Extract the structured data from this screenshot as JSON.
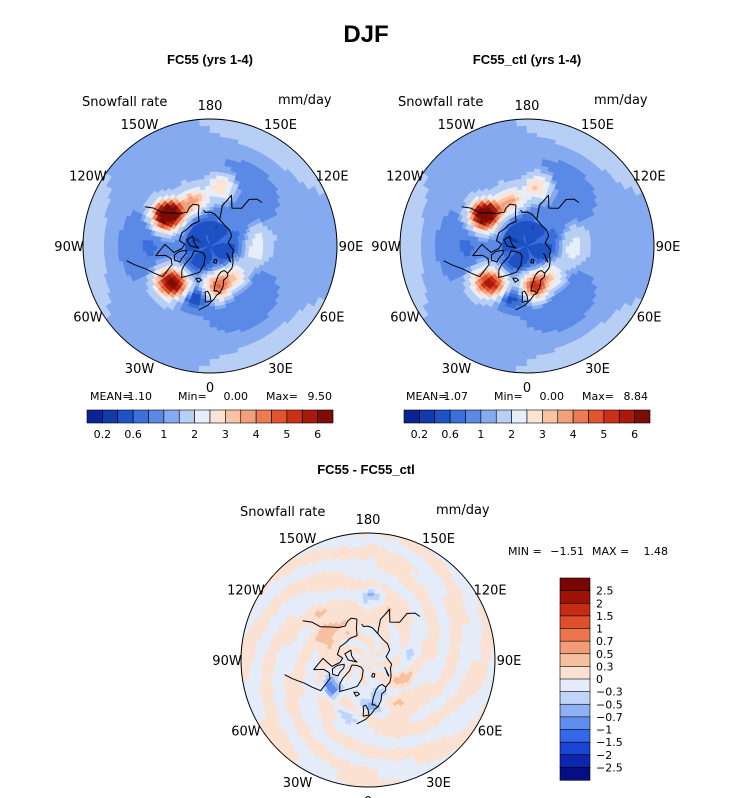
{
  "page_title": "DJF",
  "units": "mm/day",
  "variable": "Snowfall rate",
  "lon_labels": [
    "180",
    "150E",
    "120E",
    "90E",
    "60E",
    "30E",
    "0",
    "30W",
    "60W",
    "90W",
    "120W",
    "150W"
  ],
  "stat_labels": {
    "mean": "MEAN=",
    "min": "Min=",
    "max": "Max=",
    "min_uc": "MIN =",
    "max_uc": "MAX ="
  },
  "colors": {
    "seq": [
      "#0a2494",
      "#133aa8",
      "#1f52c4",
      "#3b6fdb",
      "#5a8ae6",
      "#86aaef",
      "#b8cff5",
      "#e6eefb",
      "#fce3d4",
      "#f8c2a4",
      "#f2a07a",
      "#ec7a53",
      "#e2532f",
      "#cc3019",
      "#a81a0c",
      "#7e0d05"
    ],
    "div": [
      "#050f82",
      "#0c26b0",
      "#1b44d4",
      "#3568e6",
      "#5f8ef0",
      "#8fb1f4",
      "#bfd4f8",
      "#e4ecf9",
      "#fbe1d2",
      "#f7c0a1",
      "#f29d77",
      "#ea764d",
      "#df4f2c",
      "#c62c15",
      "#9d1207",
      "#780603"
    ]
  },
  "chart_data": [
    {
      "type": "heatmap",
      "projection": "north-polar-stereographic",
      "title": "FC55 (yrs 1-4)",
      "stats": {
        "mean": "1.10",
        "min": "0.00",
        "max": "9.50"
      },
      "colorbar_ticks": [
        "0.2",
        "0.6",
        "1",
        "2",
        "3",
        "4",
        "5",
        "6"
      ],
      "blobs": [
        {
          "lon": -125,
          "lat": 52,
          "value": 6.5
        },
        {
          "lon": -130,
          "lat": 55,
          "value": 4.2
        },
        {
          "lon": -50,
          "lat": 50,
          "value": 3.6
        },
        {
          "lon": -42,
          "lat": 54,
          "value": 4.8
        },
        {
          "lon": 12,
          "lat": 61,
          "value": 4.0
        },
        {
          "lon": -160,
          "lat": 56,
          "value": 3.1
        },
        {
          "lon": 170,
          "lat": 48,
          "value": 2.5
        },
        {
          "lon": 40,
          "lat": 62,
          "value": 2.2
        },
        {
          "lon": 80,
          "lat": 58,
          "value": 1.6
        },
        {
          "lon": 100,
          "lat": 55,
          "value": 1.5
        },
        {
          "lon": -20,
          "lat": 52,
          "value": 0.1
        },
        {
          "lon": -95,
          "lat": 78,
          "value": 0.25
        },
        {
          "lon": 60,
          "lat": 78,
          "value": 0.2
        },
        {
          "lon": -170,
          "lat": 72,
          "value": 0.35
        }
      ]
    },
    {
      "type": "heatmap",
      "projection": "north-polar-stereographic",
      "title": "FC55_ctl (yrs 1-4)",
      "stats": {
        "mean": "1.07",
        "min": "0.00",
        "max": "8.84"
      },
      "colorbar_ticks": [
        "0.2",
        "0.6",
        "1",
        "2",
        "3",
        "4",
        "5",
        "6"
      ],
      "blobs": [
        {
          "lon": -125,
          "lat": 52,
          "value": 6.0
        },
        {
          "lon": -130,
          "lat": 55,
          "value": 4.0
        },
        {
          "lon": -50,
          "lat": 50,
          "value": 3.4
        },
        {
          "lon": -40,
          "lat": 55,
          "value": 3.9
        },
        {
          "lon": 12,
          "lat": 61,
          "value": 4.8
        },
        {
          "lon": -160,
          "lat": 56,
          "value": 3.0
        },
        {
          "lon": 170,
          "lat": 48,
          "value": 2.6
        },
        {
          "lon": 40,
          "lat": 62,
          "value": 2.1
        },
        {
          "lon": 80,
          "lat": 58,
          "value": 1.6
        },
        {
          "lon": 100,
          "lat": 55,
          "value": 1.4
        },
        {
          "lon": -20,
          "lat": 52,
          "value": 0.1
        },
        {
          "lon": -95,
          "lat": 78,
          "value": 0.25
        },
        {
          "lon": 60,
          "lat": 78,
          "value": 0.2
        },
        {
          "lon": -170,
          "lat": 72,
          "value": 0.35
        }
      ]
    },
    {
      "type": "heatmap",
      "projection": "north-polar-stereographic",
      "title": "FC55 - FC55_ctl",
      "stats": {
        "min": "−1.51",
        "max": "1.48"
      },
      "colorbar_ticks": [
        "2.5",
        "2",
        "1.5",
        "1",
        "0.7",
        "0.5",
        "0.3",
        "0",
        "−0.3",
        "−0.5",
        "−0.7",
        "−1",
        "−1.5",
        "−2",
        "−2.5"
      ],
      "blobs": [
        {
          "lon": -42,
          "lat": 55,
          "value": 0.9
        },
        {
          "lon": -48,
          "lat": 57,
          "value": -1.4
        },
        {
          "lon": 12,
          "lat": 61,
          "value": -0.6
        },
        {
          "lon": 160,
          "lat": 52,
          "value": 0.4
        },
        {
          "lon": -110,
          "lat": 60,
          "value": 0.35
        },
        {
          "lon": -130,
          "lat": 50,
          "value": 0.4
        },
        {
          "lon": 60,
          "lat": 62,
          "value": 0.3
        },
        {
          "lon": 100,
          "lat": 62,
          "value": -0.25
        },
        {
          "lon": 175,
          "lat": 45,
          "value": -0.4
        },
        {
          "lon": -20,
          "lat": 48,
          "value": -0.35
        },
        {
          "lon": -150,
          "lat": 60,
          "value": 0.3
        },
        {
          "lon": 30,
          "lat": 50,
          "value": 0.3
        }
      ]
    }
  ]
}
